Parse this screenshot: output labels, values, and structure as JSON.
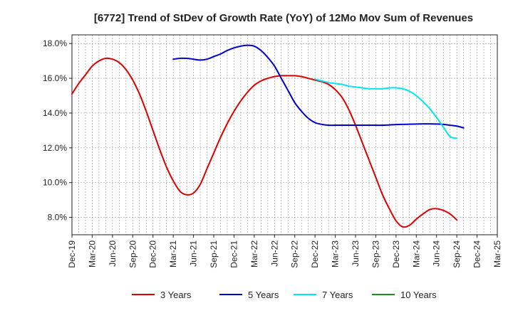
{
  "chart_data": {
    "type": "line",
    "title": "[6772]  Trend of StDev of Growth Rate (YoY) of 12Mo Mov Sum of Revenues",
    "xlabel": "",
    "ylabel": "",
    "ylim": [
      7.0,
      18.5
    ],
    "y_ticks": [
      8.0,
      10.0,
      12.0,
      14.0,
      16.0,
      18.0
    ],
    "y_tick_labels": [
      "8.0%",
      "10.0%",
      "12.0%",
      "14.0%",
      "16.0%",
      "18.0%"
    ],
    "x_tick_labels": [
      "Dec-19",
      "Mar-20",
      "Jun-20",
      "Sep-20",
      "Dec-20",
      "Mar-21",
      "Jun-21",
      "Sep-21",
      "Dec-21",
      "Mar-22",
      "Jun-22",
      "Sep-22",
      "Dec-22",
      "Mar-23",
      "Jun-23",
      "Sep-23",
      "Dec-23",
      "Mar-24",
      "Jun-24",
      "Sep-24",
      "Dec-24",
      "Mar-25"
    ],
    "x_range_months": [
      0,
      63
    ],
    "grid": true,
    "legend_position": "bottom",
    "series": [
      {
        "name": "3 Years",
        "color": "#dd0000",
        "x": [
          0,
          1,
          2,
          3,
          4,
          5,
          6,
          7,
          8,
          9,
          10,
          11,
          12,
          13,
          14,
          15,
          16,
          17,
          18,
          19,
          20,
          21,
          22,
          23,
          24,
          25,
          26,
          27,
          28,
          29,
          30,
          31,
          32,
          33,
          34,
          35,
          36,
          37,
          38,
          39,
          40,
          41,
          42,
          43,
          44,
          45,
          46,
          47,
          48,
          49,
          50,
          51,
          52,
          53,
          54,
          55,
          56,
          57,
          58,
          59,
          60
        ],
        "values": [
          15.1,
          15.7,
          16.2,
          16.7,
          17.0,
          17.15,
          17.1,
          16.9,
          16.5,
          15.9,
          15.1,
          14.1,
          13.0,
          11.9,
          10.9,
          10.1,
          9.5,
          9.3,
          9.4,
          9.9,
          10.8,
          11.7,
          12.6,
          13.4,
          14.1,
          14.7,
          15.2,
          15.6,
          15.85,
          16.0,
          16.1,
          16.15,
          16.15,
          16.15,
          16.1,
          16.0,
          15.9,
          15.8,
          15.65,
          15.35,
          14.9,
          14.2,
          13.3,
          12.3,
          11.3,
          10.3,
          9.3,
          8.5,
          7.8,
          7.45,
          7.55,
          7.9,
          8.2,
          8.45,
          8.5,
          8.4,
          8.2,
          7.85,
          null,
          null,
          null
        ]
      },
      {
        "name": "5 Years",
        "color": "#0000cc",
        "x": [
          15,
          16,
          17,
          18,
          19,
          20,
          21,
          22,
          23,
          24,
          25,
          26,
          27,
          28,
          29,
          30,
          31,
          32,
          33,
          34,
          35,
          36,
          37,
          38,
          39,
          40,
          41,
          42,
          43,
          44,
          45,
          46,
          47,
          48,
          49,
          50,
          51,
          52,
          53,
          54,
          55,
          56,
          57,
          58,
          59,
          60
        ],
        "values": [
          17.1,
          17.15,
          17.15,
          17.1,
          17.05,
          17.1,
          17.25,
          17.4,
          17.6,
          17.75,
          17.85,
          17.9,
          17.85,
          17.6,
          17.2,
          16.7,
          16.0,
          15.3,
          14.6,
          14.1,
          13.7,
          13.45,
          13.35,
          13.3,
          13.3,
          13.3,
          13.3,
          13.3,
          13.3,
          13.3,
          13.3,
          13.3,
          13.32,
          13.34,
          13.35,
          13.36,
          13.37,
          13.38,
          13.38,
          13.37,
          13.35,
          13.3,
          13.25,
          13.15,
          null,
          null
        ]
      },
      {
        "name": "7 Years",
        "color": "#00e5ee",
        "x": [
          36,
          37,
          38,
          39,
          40,
          41,
          42,
          43,
          44,
          45,
          46,
          47,
          48,
          49,
          50,
          51,
          52,
          53,
          54,
          55,
          56,
          57
        ],
        "values": [
          15.95,
          15.85,
          15.75,
          15.7,
          15.65,
          15.55,
          15.5,
          15.45,
          15.4,
          15.4,
          15.4,
          15.45,
          15.45,
          15.4,
          15.25,
          15.0,
          14.65,
          14.25,
          13.75,
          13.2,
          12.65,
          12.55
        ]
      },
      {
        "name": "10 Years",
        "color": "#228b22",
        "x": [],
        "values": []
      }
    ]
  }
}
